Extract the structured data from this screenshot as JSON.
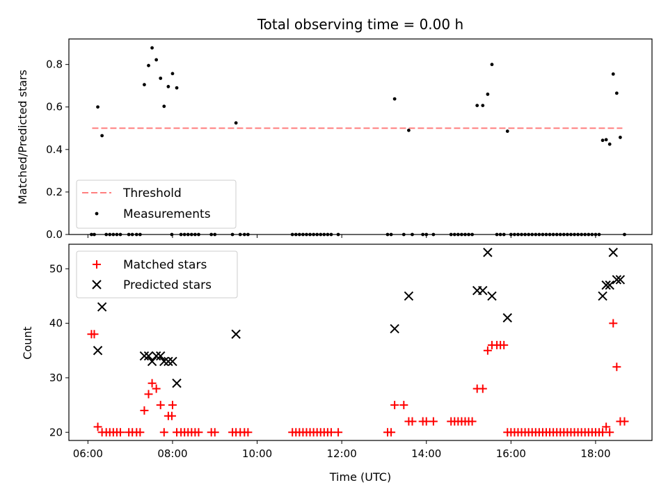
{
  "figure": {
    "title": "Total observing time = 0.00 h",
    "xlabel": "Time (UTC)"
  },
  "chart_data": [
    {
      "type": "scatter",
      "ylabel": "Matched/Predicted stars",
      "xlim": [
        "05:33",
        "19:20"
      ],
      "ylim": [
        0,
        0.92
      ],
      "xticks": [
        "06:00",
        "08:00",
        "10:00",
        "12:00",
        "14:00",
        "16:00",
        "18:00"
      ],
      "yticks": [
        0.0,
        0.2,
        0.4,
        0.6,
        0.8
      ],
      "grid": false,
      "legend_position": "lower-left",
      "threshold": {
        "name": "Threshold",
        "value": 0.5,
        "x_start": "06:06",
        "x_end": "18:38",
        "color": "#ff7f7f"
      },
      "series": [
        {
          "name": "Measurements",
          "color": "#000000",
          "points": [
            [
              "06:05",
              0
            ],
            [
              "06:09",
              0
            ],
            [
              "06:14",
              0.6
            ],
            [
              "06:20",
              0.465
            ],
            [
              "06:26",
              0
            ],
            [
              "06:31",
              0
            ],
            [
              "06:36",
              0
            ],
            [
              "06:41",
              0
            ],
            [
              "06:46",
              0
            ],
            [
              "06:58",
              0
            ],
            [
              "07:03",
              0
            ],
            [
              "07:09",
              0
            ],
            [
              "07:14",
              0
            ],
            [
              "07:20",
              0.705
            ],
            [
              "07:26",
              0.795
            ],
            [
              "07:31",
              0.878
            ],
            [
              "07:37",
              0.822
            ],
            [
              "07:43",
              0.735
            ],
            [
              "07:48",
              0.603
            ],
            [
              "07:54",
              0.696
            ],
            [
              "07:59",
              0
            ],
            [
              "08:00",
              0.757
            ],
            [
              "08:06",
              0.69
            ],
            [
              "08:12",
              0
            ],
            [
              "08:17",
              0
            ],
            [
              "08:22",
              0
            ],
            [
              "08:27",
              0
            ],
            [
              "08:32",
              0
            ],
            [
              "08:37",
              0
            ],
            [
              "08:55",
              0
            ],
            [
              "09:00",
              0
            ],
            [
              "09:25",
              0
            ],
            [
              "09:30",
              0.525
            ],
            [
              "09:36",
              0
            ],
            [
              "09:42",
              0
            ],
            [
              "09:47",
              0
            ],
            [
              "10:50",
              0
            ],
            [
              "10:55",
              0
            ],
            [
              "11:00",
              0
            ],
            [
              "11:05",
              0
            ],
            [
              "11:10",
              0
            ],
            [
              "11:15",
              0
            ],
            [
              "11:20",
              0
            ],
            [
              "11:25",
              0
            ],
            [
              "11:30",
              0
            ],
            [
              "11:35",
              0
            ],
            [
              "11:40",
              0
            ],
            [
              "11:45",
              0
            ],
            [
              "11:55",
              0
            ],
            [
              "13:05",
              0
            ],
            [
              "13:10",
              0
            ],
            [
              "13:15",
              0.638
            ],
            [
              "13:28",
              0
            ],
            [
              "13:35",
              0.49
            ],
            [
              "13:40",
              0
            ],
            [
              "13:55",
              0
            ],
            [
              "14:00",
              0
            ],
            [
              "14:10",
              0
            ],
            [
              "14:35",
              0
            ],
            [
              "14:40",
              0
            ],
            [
              "14:45",
              0
            ],
            [
              "14:50",
              0
            ],
            [
              "14:55",
              0
            ],
            [
              "15:00",
              0
            ],
            [
              "15:05",
              0
            ],
            [
              "15:12",
              0.607
            ],
            [
              "15:20",
              0.607
            ],
            [
              "15:27",
              0.66
            ],
            [
              "15:33",
              0.8
            ],
            [
              "15:40",
              0
            ],
            [
              "15:45",
              0
            ],
            [
              "15:50",
              0
            ],
            [
              "15:55",
              0.486
            ],
            [
              "16:00",
              0
            ],
            [
              "16:05",
              0
            ],
            [
              "16:10",
              0
            ],
            [
              "16:15",
              0
            ],
            [
              "16:20",
              0
            ],
            [
              "16:25",
              0
            ],
            [
              "16:30",
              0
            ],
            [
              "16:35",
              0
            ],
            [
              "16:40",
              0
            ],
            [
              "16:45",
              0
            ],
            [
              "16:50",
              0
            ],
            [
              "16:55",
              0
            ],
            [
              "17:00",
              0
            ],
            [
              "17:05",
              0
            ],
            [
              "17:10",
              0
            ],
            [
              "17:15",
              0
            ],
            [
              "17:20",
              0
            ],
            [
              "17:25",
              0
            ],
            [
              "17:30",
              0
            ],
            [
              "17:35",
              0
            ],
            [
              "17:40",
              0
            ],
            [
              "17:45",
              0
            ],
            [
              "17:50",
              0
            ],
            [
              "17:55",
              0
            ],
            [
              "18:00",
              0
            ],
            [
              "18:05",
              0
            ],
            [
              "18:10",
              0.443
            ],
            [
              "18:15",
              0.446
            ],
            [
              "18:20",
              0.425
            ],
            [
              "18:25",
              0.755
            ],
            [
              "18:30",
              0.665
            ],
            [
              "18:35",
              0.457
            ],
            [
              "18:41",
              0
            ]
          ]
        }
      ]
    },
    {
      "type": "scatter",
      "ylabel": "Count",
      "xlim": [
        "05:33",
        "19:20"
      ],
      "ylim": [
        18.5,
        54.5
      ],
      "xticks": [
        "06:00",
        "08:00",
        "10:00",
        "12:00",
        "14:00",
        "16:00",
        "18:00"
      ],
      "yticks": [
        20,
        30,
        40,
        50
      ],
      "grid": false,
      "legend_position": "upper-left",
      "series": [
        {
          "name": "Matched stars",
          "marker": "plus",
          "color": "#ff0000",
          "points": [
            [
              "06:05",
              38
            ],
            [
              "06:09",
              38
            ],
            [
              "06:14",
              21
            ],
            [
              "06:20",
              20
            ],
            [
              "06:26",
              20
            ],
            [
              "06:31",
              20
            ],
            [
              "06:36",
              20
            ],
            [
              "06:41",
              20
            ],
            [
              "06:46",
              20
            ],
            [
              "06:58",
              20
            ],
            [
              "07:03",
              20
            ],
            [
              "07:09",
              20
            ],
            [
              "07:14",
              20
            ],
            [
              "07:20",
              24
            ],
            [
              "07:26",
              27
            ],
            [
              "07:31",
              29
            ],
            [
              "07:37",
              28
            ],
            [
              "07:43",
              25
            ],
            [
              "07:48",
              20
            ],
            [
              "07:54",
              23
            ],
            [
              "07:59",
              23
            ],
            [
              "08:00",
              25
            ],
            [
              "08:06",
              20
            ],
            [
              "08:12",
              20
            ],
            [
              "08:17",
              20
            ],
            [
              "08:22",
              20
            ],
            [
              "08:27",
              20
            ],
            [
              "08:32",
              20
            ],
            [
              "08:37",
              20
            ],
            [
              "08:55",
              20
            ],
            [
              "09:00",
              20
            ],
            [
              "09:25",
              20
            ],
            [
              "09:30",
              20
            ],
            [
              "09:36",
              20
            ],
            [
              "09:42",
              20
            ],
            [
              "09:47",
              20
            ],
            [
              "10:50",
              20
            ],
            [
              "10:55",
              20
            ],
            [
              "11:00",
              20
            ],
            [
              "11:05",
              20
            ],
            [
              "11:10",
              20
            ],
            [
              "11:15",
              20
            ],
            [
              "11:20",
              20
            ],
            [
              "11:25",
              20
            ],
            [
              "11:30",
              20
            ],
            [
              "11:35",
              20
            ],
            [
              "11:40",
              20
            ],
            [
              "11:45",
              20
            ],
            [
              "11:55",
              20
            ],
            [
              "13:05",
              20
            ],
            [
              "13:10",
              20
            ],
            [
              "13:15",
              25
            ],
            [
              "13:28",
              25
            ],
            [
              "13:35",
              22
            ],
            [
              "13:40",
              22
            ],
            [
              "13:55",
              22
            ],
            [
              "14:00",
              22
            ],
            [
              "14:10",
              22
            ],
            [
              "14:35",
              22
            ],
            [
              "14:40",
              22
            ],
            [
              "14:45",
              22
            ],
            [
              "14:50",
              22
            ],
            [
              "14:55",
              22
            ],
            [
              "15:00",
              22
            ],
            [
              "15:05",
              22
            ],
            [
              "15:12",
              28
            ],
            [
              "15:20",
              28
            ],
            [
              "15:27",
              35
            ],
            [
              "15:33",
              36
            ],
            [
              "15:40",
              36
            ],
            [
              "15:45",
              36
            ],
            [
              "15:50",
              36
            ],
            [
              "15:55",
              20
            ],
            [
              "16:00",
              20
            ],
            [
              "16:05",
              20
            ],
            [
              "16:10",
              20
            ],
            [
              "16:15",
              20
            ],
            [
              "16:20",
              20
            ],
            [
              "16:25",
              20
            ],
            [
              "16:30",
              20
            ],
            [
              "16:35",
              20
            ],
            [
              "16:40",
              20
            ],
            [
              "16:45",
              20
            ],
            [
              "16:50",
              20
            ],
            [
              "16:55",
              20
            ],
            [
              "17:00",
              20
            ],
            [
              "17:05",
              20
            ],
            [
              "17:10",
              20
            ],
            [
              "17:15",
              20
            ],
            [
              "17:20",
              20
            ],
            [
              "17:25",
              20
            ],
            [
              "17:30",
              20
            ],
            [
              "17:35",
              20
            ],
            [
              "17:40",
              20
            ],
            [
              "17:45",
              20
            ],
            [
              "17:50",
              20
            ],
            [
              "17:55",
              20
            ],
            [
              "18:00",
              20
            ],
            [
              "18:05",
              20
            ],
            [
              "18:10",
              20
            ],
            [
              "18:15",
              21
            ],
            [
              "18:20",
              20
            ],
            [
              "18:25",
              40
            ],
            [
              "18:30",
              32
            ],
            [
              "18:35",
              22
            ],
            [
              "18:41",
              22
            ]
          ]
        },
        {
          "name": "Predicted stars",
          "marker": "x",
          "color": "#000000",
          "points": [
            [
              "06:14",
              35
            ],
            [
              "06:20",
              43
            ],
            [
              "07:20",
              34
            ],
            [
              "07:26",
              34
            ],
            [
              "07:31",
              33
            ],
            [
              "07:37",
              34
            ],
            [
              "07:43",
              34
            ],
            [
              "07:48",
              33
            ],
            [
              "07:54",
              33
            ],
            [
              "08:00",
              33
            ],
            [
              "08:06",
              29
            ],
            [
              "09:30",
              38
            ],
            [
              "13:15",
              39
            ],
            [
              "13:35",
              45
            ],
            [
              "15:12",
              46
            ],
            [
              "15:20",
              46
            ],
            [
              "15:27",
              53
            ],
            [
              "15:33",
              45
            ],
            [
              "15:55",
              41
            ],
            [
              "18:10",
              45
            ],
            [
              "18:15",
              47
            ],
            [
              "18:20",
              47
            ],
            [
              "18:25",
              53
            ],
            [
              "18:30",
              48
            ],
            [
              "18:35",
              48
            ]
          ]
        }
      ]
    }
  ]
}
